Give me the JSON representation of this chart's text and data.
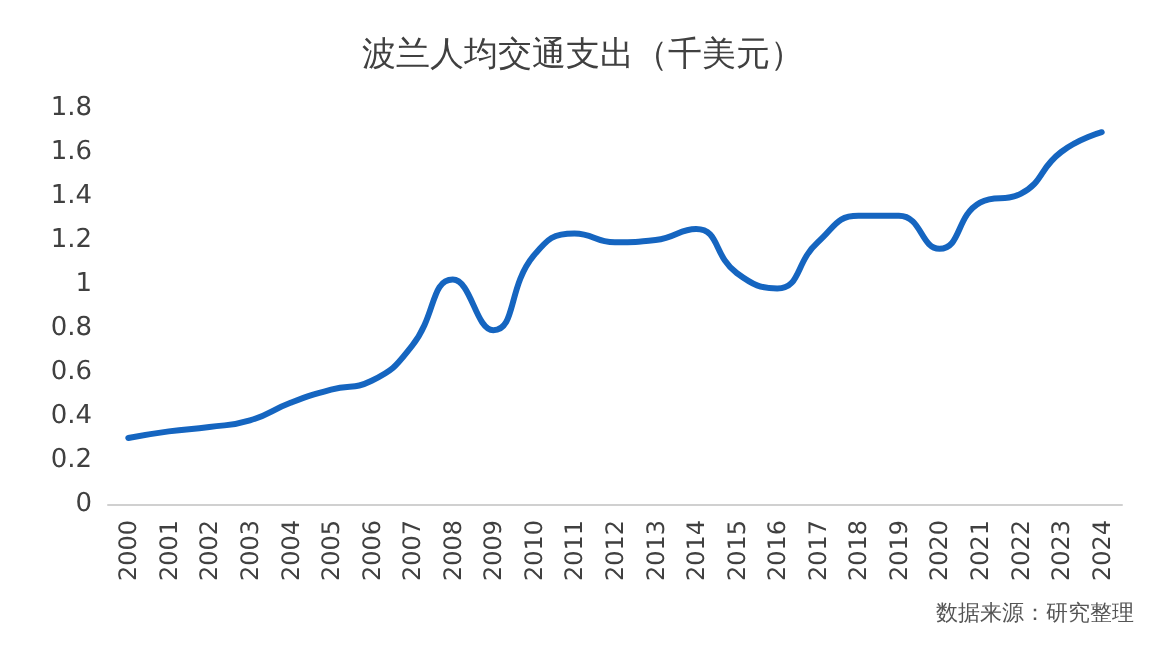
{
  "chart_data": {
    "type": "line",
    "title": "波兰人均交通支出（千美元）",
    "categories": [
      "2000",
      "2001",
      "2002",
      "2003",
      "2004",
      "2005",
      "2006",
      "2007",
      "2008",
      "2009",
      "2010",
      "2011",
      "2012",
      "2013",
      "2014",
      "2015",
      "2016",
      "2017",
      "2018",
      "2019",
      "2020",
      "2021",
      "2022",
      "2023",
      "2024"
    ],
    "series": [
      {
        "color": "#1565c0",
        "values": [
          0.3,
          0.33,
          0.35,
          0.38,
          0.46,
          0.52,
          0.56,
          0.72,
          1.02,
          0.79,
          1.13,
          1.23,
          1.19,
          1.2,
          1.25,
          1.05,
          0.98,
          1.19,
          1.31,
          1.31,
          1.16,
          1.37,
          1.41,
          1.6,
          1.69
        ]
      }
    ],
    "ylim": [
      0,
      1.8
    ],
    "yticks": [
      0,
      0.2,
      0.4,
      0.6,
      0.8,
      1,
      1.2,
      1.4,
      1.6,
      1.8
    ],
    "grid": false,
    "marker": "none",
    "line_style": "solid",
    "annotations": [
      "数据来源：研究整理"
    ]
  }
}
